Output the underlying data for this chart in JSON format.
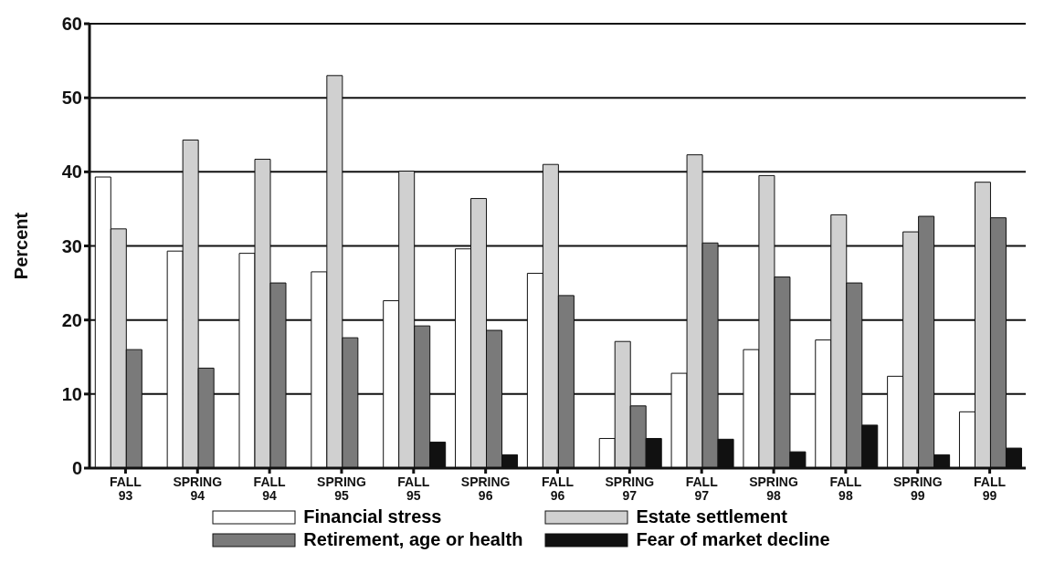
{
  "chart_data": {
    "type": "bar",
    "ylabel": "Percent",
    "categories": [
      "FALL 93",
      "SPRING 94",
      "FALL 94",
      "SPRING 95",
      "FALL 95",
      "SPRING 96",
      "FALL 96",
      "SPRING 97",
      "FALL 97",
      "SPRING 98",
      "FALL 98",
      "SPRING 99",
      "FALL 99"
    ],
    "series": [
      {
        "name": "Financial stress",
        "color": "#ffffff",
        "values": [
          39.3,
          29.3,
          29,
          26.5,
          22.6,
          29.6,
          26.3,
          4,
          12.8,
          16,
          17.3,
          12.4,
          7.6
        ]
      },
      {
        "name": "Estate settlement",
        "color": "#d0d0d0",
        "values": [
          32.3,
          44.3,
          41.7,
          53,
          40.1,
          36.4,
          41,
          17.1,
          42.3,
          39.5,
          34.2,
          31.9,
          38.6
        ]
      },
      {
        "name": "Retirement, age or health",
        "color": "#7a7a7a",
        "values": [
          16,
          13.5,
          25,
          17.6,
          19.2,
          18.6,
          23.3,
          8.4,
          30.4,
          25.8,
          25,
          34,
          33.8
        ]
      },
      {
        "name": "Fear of market decline",
        "color": "#111111",
        "values": [
          0,
          0,
          0,
          0,
          3.5,
          1.8,
          0,
          4,
          3.9,
          2.2,
          5.8,
          1.8,
          2.7
        ]
      }
    ],
    "ylim": [
      0,
      60
    ],
    "yticks": [
      0,
      10,
      20,
      30,
      40,
      50,
      60
    ],
    "grid": "y",
    "legend": "bottom"
  }
}
